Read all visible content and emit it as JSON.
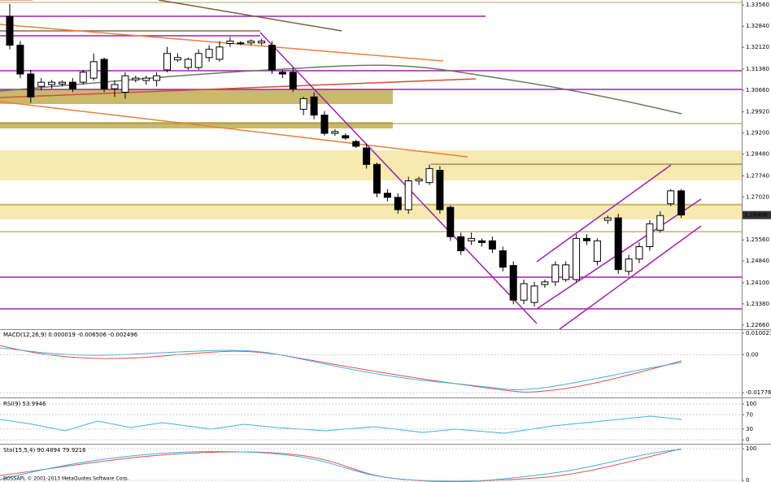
{
  "chart_data": [
    {
      "type": "candlestick",
      "open": [
        1.3317,
        1.3219,
        1.3121,
        1.3079,
        1.3085,
        1.3087,
        1.3093,
        1.3093,
        1.3107,
        1.3171,
        1.3071,
        1.3059,
        1.3101,
        1.3099,
        1.3099,
        1.3135,
        1.3169,
        1.3143,
        1.3143,
        1.3177,
        1.3171,
        1.3225,
        1.3227,
        1.3227,
        1.3227,
        1.3219,
        1.3127,
        1.3127,
        1.3001,
        1.3043,
        1.2981,
        1.2919,
        1.2911,
        1.2891,
        1.2869,
        1.2813,
        1.2715,
        1.2701,
        1.2659,
        1.2757,
        1.2751,
        1.2793,
        1.2667,
        1.2567,
        1.2553,
        1.2553,
        1.2553,
        1.2519,
        1.2469,
        1.2351,
        1.2343,
        1.2404,
        1.2413,
        1.2421,
        1.2421,
        1.2561,
        1.2483,
        1.2623,
        1.2631,
        1.2449,
        1.2491,
        1.2533,
        1.2589,
        1.2679,
        1.2723
      ],
      "high": [
        1.3359,
        1.3233,
        1.3135,
        1.3107,
        1.3101,
        1.3099,
        1.3107,
        1.3135,
        1.3191,
        1.3177,
        1.3099,
        1.3127,
        1.3115,
        1.3115,
        1.3127,
        1.3213,
        1.3191,
        1.3177,
        1.3205,
        1.3219,
        1.3233,
        1.3247,
        1.3233,
        1.3239,
        1.3241,
        1.3233,
        1.3135,
        1.3143,
        1.3043,
        1.3059,
        1.2995,
        1.2933,
        1.2919,
        1.2897,
        1.2883,
        1.2819,
        1.2729,
        1.2715,
        1.2771,
        1.2771,
        1.2813,
        1.2807,
        1.2673,
        1.2581,
        1.2581,
        1.2561,
        1.2567,
        1.2533,
        1.2483,
        1.2421,
        1.2413,
        1.2421,
        1.2483,
        1.2483,
        1.2575,
        1.2575,
        1.2561,
        1.2639,
        1.2645,
        1.2505,
        1.2547,
        1.2623,
        1.2653,
        1.2729,
        1.2729
      ],
      "low": [
        1.3205,
        1.3107,
        1.3023,
        1.3065,
        1.3071,
        1.3079,
        1.3059,
        1.3085,
        1.3099,
        1.3059,
        1.3043,
        1.3037,
        1.3093,
        1.3085,
        1.3079,
        1.3127,
        1.3163,
        1.3135,
        1.3135,
        1.3163,
        1.3163,
        1.3213,
        1.3219,
        1.3219,
        1.3219,
        1.3121,
        1.3107,
        1.3059,
        1.2981,
        1.2967,
        1.2911,
        1.2911,
        1.2897,
        1.2869,
        1.2799,
        1.2701,
        1.2687,
        1.2645,
        1.2645,
        1.2743,
        1.2743,
        1.2645,
        1.2553,
        1.2505,
        1.2539,
        1.2533,
        1.2511,
        1.2449,
        1.2337,
        1.2337,
        1.2329,
        1.2393,
        1.2399,
        1.2413,
        1.2413,
        1.2539,
        1.2469,
        1.2611,
        1.2441,
        1.2435,
        1.2477,
        1.2519,
        1.2581,
        1.2671,
        1.2631
      ],
      "close": [
        1.3219,
        1.3121,
        1.3043,
        1.3093,
        1.3093,
        1.3093,
        1.3071,
        1.3127,
        1.3163,
        1.3071,
        1.3085,
        1.3115,
        1.3107,
        1.3107,
        1.3115,
        1.3191,
        1.3177,
        1.3171,
        1.3191,
        1.3205,
        1.3213,
        1.3233,
        1.3227,
        1.3233,
        1.3233,
        1.3135,
        1.3121,
        1.3071,
        1.3037,
        1.2981,
        1.2919,
        1.2925,
        1.2903,
        1.2875,
        1.2813,
        1.2715,
        1.2701,
        1.2659,
        1.2757,
        1.2763,
        1.2799,
        1.2659,
        1.2567,
        1.2519,
        1.2561,
        1.2547,
        1.2525,
        1.2463,
        1.2351,
        1.2407,
        1.2399,
        1.2413,
        1.2471,
        1.2471,
        1.2561,
        1.2553,
        1.2553,
        1.2631,
        1.2455,
        1.2491,
        1.2533,
        1.2611,
        1.2639,
        1.2723,
        1.2641
      ],
      "ylim": [
        1.2252,
        1.3373
      ],
      "yticks": [
        {
          "value": 1.3356,
          "label": "1.33560"
        },
        {
          "value": 1.3284,
          "label": "1.32840"
        },
        {
          "value": 1.3212,
          "label": "1.32120"
        },
        {
          "value": 1.3138,
          "label": "1.31380"
        },
        {
          "value": 1.3066,
          "label": "1.30660"
        },
        {
          "value": 1.2992,
          "label": "1.29920"
        },
        {
          "value": 1.292,
          "label": "1.29200"
        },
        {
          "value": 1.2848,
          "label": "1.28480"
        },
        {
          "value": 1.2774,
          "label": "1.27740"
        },
        {
          "value": 1.2702,
          "label": "1.27020"
        },
        {
          "value": 1.2556,
          "label": "1.25560"
        },
        {
          "value": 1.2484,
          "label": "1.24840"
        },
        {
          "value": 1.241,
          "label": "1.24100"
        },
        {
          "value": 1.2338,
          "label": "1.23380"
        },
        {
          "value": 1.2266,
          "label": "1.22660"
        }
      ],
      "last_price": {
        "value": 1.26406,
        "label": "1.26406"
      }
    },
    {
      "type": "indicator",
      "title": "MACD(12,26,9) 0.000019 -0.006506 -0.002496",
      "ylim": [
        -0.02,
        0.0119
      ],
      "yticks": [
        {
          "value": 0.010021,
          "label": "0.010021"
        },
        {
          "value": 0,
          "label": "0.00"
        },
        {
          "value": -0.01776,
          "label": "-0.01776"
        }
      ]
    },
    {
      "type": "indicator",
      "title": "RSI(9) 53.9946",
      "ylim": [
        -11,
        116
      ],
      "yticks": [
        100,
        70,
        30,
        0
      ]
    },
    {
      "type": "indicator",
      "title": "Sto(15,5,4) 90.4894 79.9216",
      "ylim": [
        -5,
        113
      ],
      "yticks": [
        100,
        0
      ]
    }
  ],
  "footer": "BOSSAPL © 2001-2013 MetaQuotes Software Corp."
}
